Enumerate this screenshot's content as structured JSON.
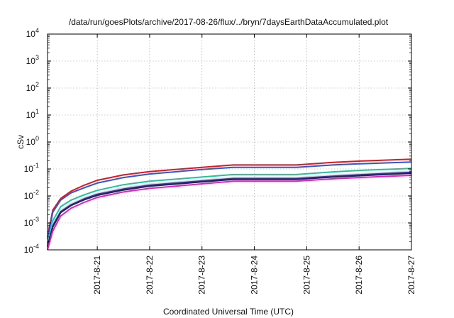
{
  "chart_data": {
    "type": "line",
    "title": "/data/run/goesPlots/archive/2017-08-26/flux/../bryn/7daysEarthDataAccumulated.plot",
    "xlabel": "Coordinated Universal Time (UTC)",
    "ylabel": "cSv",
    "y_scale": "log",
    "ylim_exp": [
      -4,
      4
    ],
    "y_ticks": [
      {
        "base": "10",
        "exp": "-4"
      },
      {
        "base": "10",
        "exp": "-3"
      },
      {
        "base": "10",
        "exp": "-2"
      },
      {
        "base": "10",
        "exp": "-1"
      },
      {
        "base": "10",
        "exp": "0"
      },
      {
        "base": "10",
        "exp": "1"
      },
      {
        "base": "10",
        "exp": "2"
      },
      {
        "base": "10",
        "exp": "3"
      },
      {
        "base": "10",
        "exp": "4"
      }
    ],
    "xlim": [
      20.05,
      27.0
    ],
    "x_ticks": [
      {
        "v": 21,
        "label": "2017-8-21"
      },
      {
        "v": 22,
        "label": "2017-8-22"
      },
      {
        "v": 23,
        "label": "2017-8-23"
      },
      {
        "v": 24,
        "label": "2017-8-24"
      },
      {
        "v": 25,
        "label": "2017-8-25"
      },
      {
        "v": 26,
        "label": "2017-8-26"
      },
      {
        "v": 27,
        "label": "2017-8-27"
      }
    ],
    "grid": true,
    "series": [
      {
        "color": "#e8131b",
        "x": [
          20.05,
          20.15,
          20.3,
          20.5,
          20.75,
          21.0,
          21.5,
          22.0,
          23.0,
          23.6,
          24.8,
          25.5,
          26.0,
          27.0
        ],
        "y": [
          0.0003,
          0.003,
          0.008,
          0.015,
          0.025,
          0.038,
          0.06,
          0.08,
          0.115,
          0.14,
          0.14,
          0.175,
          0.195,
          0.23
        ]
      },
      {
        "color": "#2f55d8",
        "x": [
          20.05,
          20.15,
          20.3,
          20.5,
          20.75,
          21.0,
          21.5,
          22.0,
          23.0,
          23.6,
          24.8,
          25.5,
          26.0,
          27.0
        ],
        "y": [
          0.00025,
          0.0025,
          0.007,
          0.013,
          0.02,
          0.03,
          0.048,
          0.065,
          0.095,
          0.115,
          0.115,
          0.14,
          0.155,
          0.18
        ]
      },
      {
        "color": "#1fc49a",
        "x": [
          20.05,
          20.15,
          20.3,
          20.5,
          20.75,
          21.0,
          21.5,
          22.0,
          23.0,
          23.6,
          24.8,
          25.5,
          26.0,
          27.0
        ],
        "y": [
          0.00018,
          0.0012,
          0.004,
          0.007,
          0.011,
          0.016,
          0.026,
          0.035,
          0.05,
          0.062,
          0.062,
          0.078,
          0.088,
          0.105
        ]
      },
      {
        "color": "#d4d4f0",
        "x": [
          20.05,
          20.15,
          20.3,
          20.5,
          20.75,
          21.0,
          21.5,
          22.0,
          23.0,
          23.6,
          24.8,
          25.5,
          26.0,
          27.0
        ],
        "y": [
          0.00015,
          0.0009,
          0.0029,
          0.0052,
          0.0085,
          0.0125,
          0.02,
          0.0275,
          0.039,
          0.048,
          0.048,
          0.059,
          0.066,
          0.082
        ]
      },
      {
        "color": "#3b3b9a",
        "x": [
          20.05,
          20.15,
          20.3,
          20.5,
          20.75,
          21.0,
          21.5,
          22.0,
          23.0,
          23.6,
          24.8,
          25.5,
          26.0,
          27.0
        ],
        "y": [
          0.00014,
          0.0008,
          0.0026,
          0.0047,
          0.0078,
          0.0115,
          0.018,
          0.025,
          0.036,
          0.044,
          0.044,
          0.054,
          0.061,
          0.075
        ]
      },
      {
        "color": "#222255",
        "x": [
          20.05,
          20.15,
          20.3,
          20.5,
          20.75,
          21.0,
          21.5,
          22.0,
          23.0,
          23.6,
          24.8,
          25.5,
          26.0,
          27.0
        ],
        "y": [
          0.00013,
          0.0007,
          0.0024,
          0.0044,
          0.0072,
          0.0105,
          0.0165,
          0.023,
          0.033,
          0.041,
          0.041,
          0.05,
          0.056,
          0.069
        ]
      },
      {
        "color": "#e81fbf",
        "x": [
          20.05,
          20.15,
          20.3,
          20.5,
          20.75,
          21.0,
          21.5,
          22.0,
          23.0,
          23.6,
          24.8,
          25.5,
          26.0,
          27.0
        ],
        "y": [
          0.0001,
          0.0005,
          0.0018,
          0.0035,
          0.0058,
          0.0088,
          0.014,
          0.019,
          0.028,
          0.035,
          0.035,
          0.043,
          0.048,
          0.058
        ]
      }
    ]
  }
}
